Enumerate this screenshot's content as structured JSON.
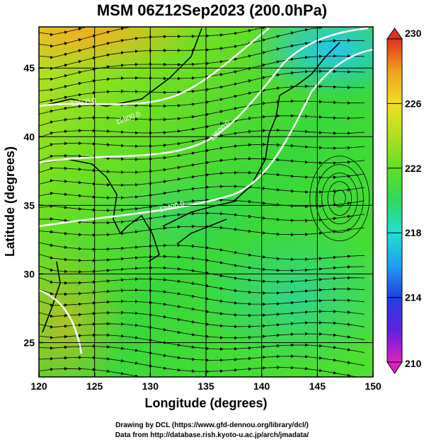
{
  "title": "MSM 06Z12Sep2023 (200.0hPa)",
  "map": {
    "lon_range": [
      120,
      150
    ],
    "lat_range": [
      22.5,
      48
    ],
    "lon_ticks": [
      "120",
      "125",
      "130",
      "135",
      "140",
      "145",
      "150"
    ],
    "lat_ticks": [
      "25",
      "30",
      "35",
      "40",
      "45"
    ],
    "xlabel": "Longitude (degrees)",
    "ylabel": "Latitude  (degrees)",
    "contour_labels": [
      "12600.0",
      "12500.0",
      "12400.0"
    ]
  },
  "colorbar": {
    "min": 210,
    "max": 230,
    "tick_labels": [
      "230",
      "226",
      "222",
      "218",
      "214",
      "210"
    ],
    "colors": [
      "#e020c0",
      "#6020e0",
      "#2040e0",
      "#20a0f0",
      "#20e0d0",
      "#30d860",
      "#60e020",
      "#b0e020",
      "#f0e020",
      "#f0a020",
      "#e03020"
    ]
  },
  "footer": {
    "line1": "Drawing by DCL (https://www.gfd-dennou.org/library/dcl/)",
    "line2": "Data from http://database.rish.kyoto-u.ac.jp/arch/jmadata/"
  }
}
